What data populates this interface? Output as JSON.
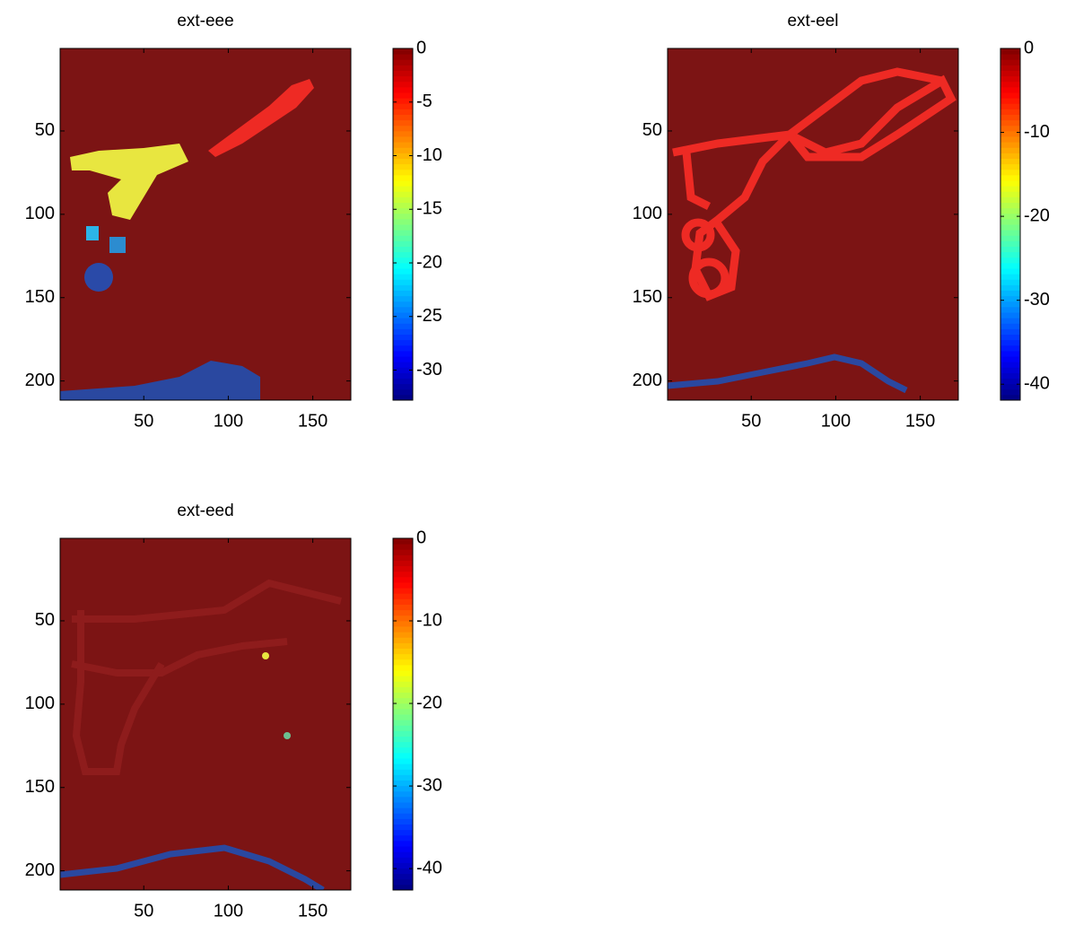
{
  "chart_data": [
    {
      "type": "image",
      "title": "ext-eee",
      "colormap": "jet",
      "y_reversed": true,
      "xlim": [
        0.5,
        172.5
      ],
      "xticks": [
        50,
        100,
        150
      ],
      "ylim": [
        0.5,
        211.5
      ],
      "yticks": [
        50,
        100,
        150,
        200
      ],
      "clim": [
        -32.8,
        0
      ],
      "cticks": [
        0,
        -5,
        -10,
        -15,
        -20,
        -25,
        -30
      ]
    },
    {
      "type": "image",
      "title": "ext-eel",
      "colormap": "jet",
      "y_reversed": true,
      "xlim": [
        0.5,
        172.5
      ],
      "xticks": [
        50,
        100,
        150
      ],
      "ylim": [
        0.5,
        211.5
      ],
      "yticks": [
        50,
        100,
        150,
        200
      ],
      "clim": [
        -41.9,
        0
      ],
      "cticks": [
        0,
        -10,
        -20,
        -30,
        -40
      ]
    },
    {
      "type": "image",
      "title": "ext-eed",
      "colormap": "jet",
      "y_reversed": true,
      "xlim": [
        0.5,
        172.5
      ],
      "xticks": [
        50,
        100,
        150
      ],
      "ylim": [
        0.5,
        211.5
      ],
      "yticks": [
        50,
        100,
        150,
        200
      ],
      "clim": [
        -42.6,
        0
      ],
      "cticks": [
        0,
        -10,
        -20,
        -30,
        -40
      ]
    }
  ]
}
